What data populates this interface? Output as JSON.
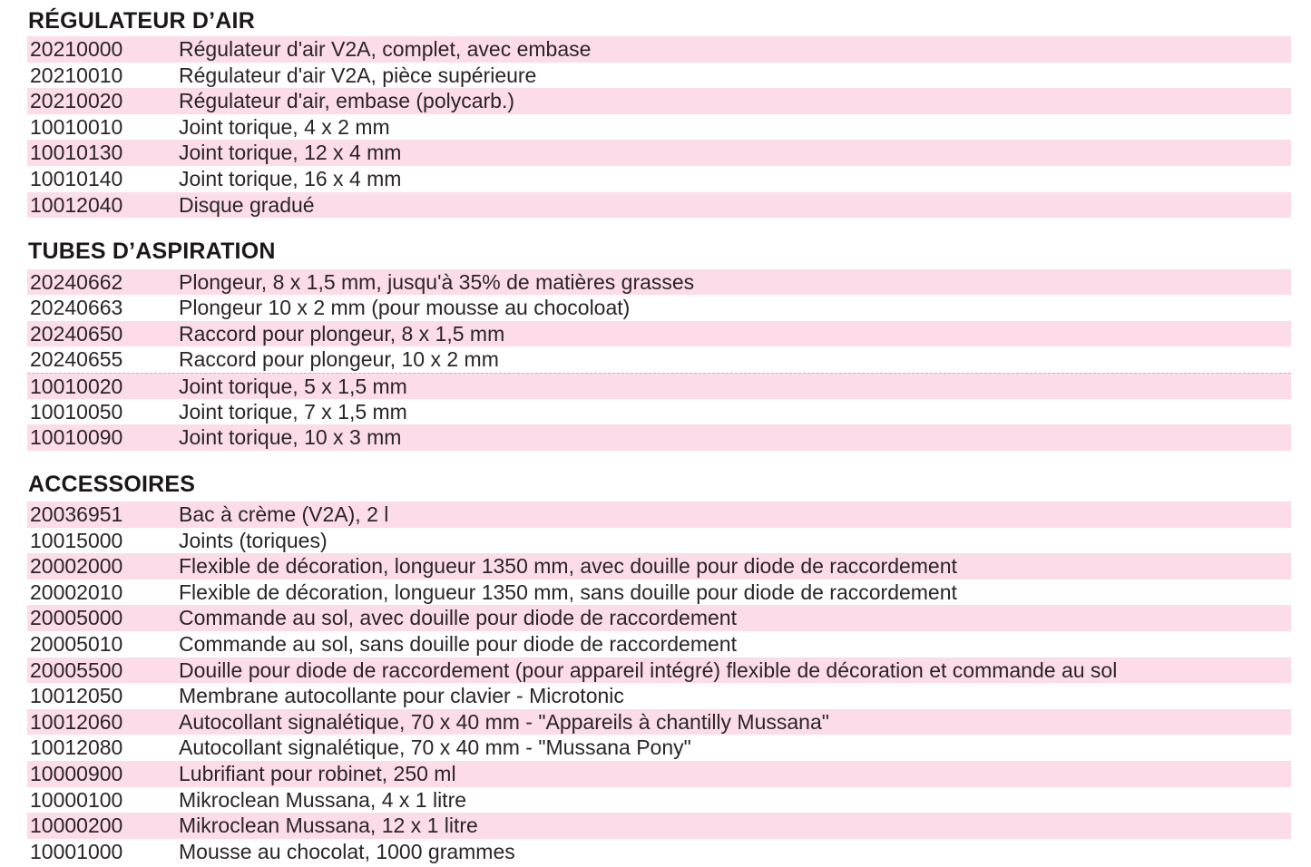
{
  "theme": {
    "stripe_color": "#fcdce9",
    "text_color": "#2a2526",
    "heading_color": "#1c1819",
    "background_color": "#ffffff"
  },
  "sections": [
    {
      "title": "RÉGULATEUR D’AIR",
      "rows": [
        {
          "code": "20210000",
          "description": "Régulateur d'air V2A, complet, avec embase"
        },
        {
          "code": "20210010",
          "description": "Régulateur d'air V2A, pièce supérieure"
        },
        {
          "code": "20210020",
          "description": "Régulateur d'air, embase (polycarb.)"
        },
        {
          "code": "10010010",
          "description": "Joint torique, 4 x 2 mm"
        },
        {
          "code": "10010130",
          "description": "Joint torique, 12 x 4 mm"
        },
        {
          "code": "10010140",
          "description": "Joint torique, 16 x 4 mm"
        },
        {
          "code": "10012040",
          "description": "Disque gradué"
        }
      ]
    },
    {
      "title": "TUBES D’ASPIRATION",
      "rows": [
        {
          "code": "20240662",
          "description": "Plongeur, 8 x 1,5 mm, jusqu'à 35% de matières grasses"
        },
        {
          "code": "20240663",
          "description": "Plongeur 10 x 2 mm (pour mousse au chocoloat)"
        },
        {
          "code": "20240650",
          "description": "Raccord pour plongeur, 8 x 1,5 mm"
        },
        {
          "code": "20240655",
          "description": "Raccord pour plongeur, 10 x 2 mm"
        },
        {
          "code": "10010020",
          "description": "Joint torique, 5 x 1,5 mm"
        },
        {
          "code": "10010050",
          "description": "Joint torique, 7 x 1,5 mm"
        },
        {
          "code": "10010090",
          "description": "Joint torique, 10 x 3 mm"
        }
      ]
    },
    {
      "title": "ACCESSOIRES",
      "rows": [
        {
          "code": "20036951",
          "description": "Bac à crème (V2A), 2 l"
        },
        {
          "code": "10015000",
          "description": "Joints (toriques)"
        },
        {
          "code": "20002000",
          "description": "Flexible de décoration, longueur 1350 mm, avec douille pour diode de raccordement"
        },
        {
          "code": "20002010",
          "description": "Flexible de décoration, longueur 1350 mm, sans douille pour diode de raccordement"
        },
        {
          "code": "20005000",
          "description": "Commande au sol, avec douille pour diode de raccordement"
        },
        {
          "code": "20005010",
          "description": "Commande au sol, sans douille pour diode de raccordement"
        },
        {
          "code": "20005500",
          "description": "Douille pour diode de raccordement (pour appareil intégré) flexible de décoration et commande au sol"
        },
        {
          "code": "10012050",
          "description": "Membrane autocollante pour clavier - Microtonic"
        },
        {
          "code": "10012060",
          "description": "Autocollant signalétique, 70 x 40 mm - \"Appareils à chantilly Mussana\""
        },
        {
          "code": "10012080",
          "description": "Autocollant signalétique, 70 x 40 mm - \"Mussana Pony\""
        },
        {
          "code": "10000900",
          "description": "Lubrifiant pour robinet, 250 ml"
        },
        {
          "code": "10000100",
          "description": "Mikroclean Mussana, 4 x 1 litre"
        },
        {
          "code": "10000200",
          "description": "Mikroclean Mussana, 12 x 1 litre"
        },
        {
          "code": "10001000",
          "description": "Mousse au chocolat, 1000 grammes"
        }
      ]
    }
  ]
}
